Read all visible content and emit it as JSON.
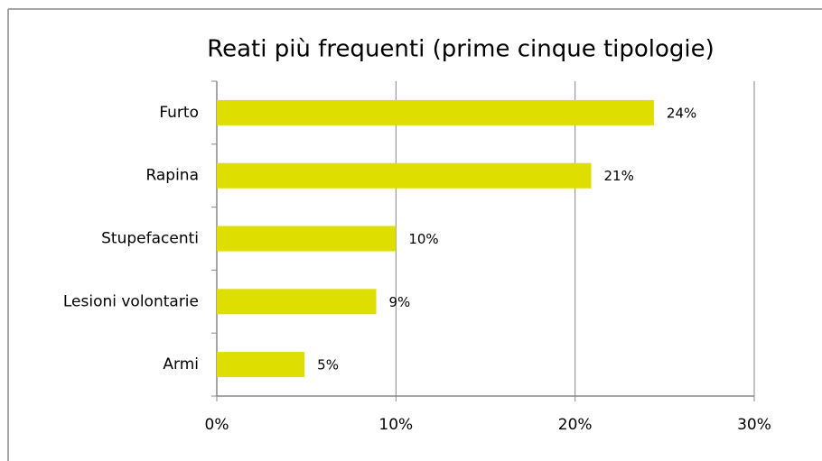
{
  "chart_data": {
    "type": "bar",
    "orientation": "horizontal",
    "title": "Reati più frequenti (prime cinque tipologie)",
    "categories": [
      "Furto",
      "Rapina",
      "Stupefacenti",
      "Lesioni volontarie",
      "Armi"
    ],
    "values": [
      24.4,
      20.9,
      10,
      8.9,
      4.9
    ],
    "value_labels": [
      "24%",
      "21%",
      "10%",
      "9%",
      "5%"
    ],
    "color": "#dede00",
    "xlim": [
      0,
      30
    ],
    "xticks": [
      {
        "value": 0,
        "label": "0%"
      },
      {
        "value": 10,
        "label": "10%"
      },
      {
        "value": 20,
        "label": "20%"
      },
      {
        "value": 30,
        "label": "30%"
      }
    ],
    "grid": true
  }
}
